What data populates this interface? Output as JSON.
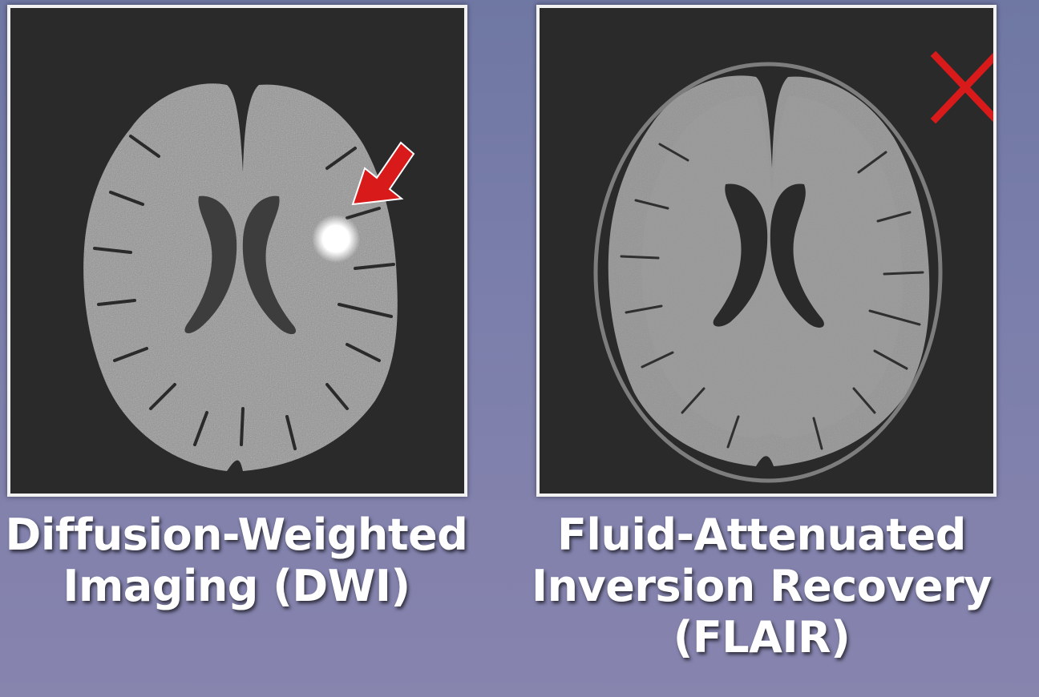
{
  "panels": [
    {
      "id": "dwi",
      "caption_lines": [
        "Diffusion-Weighted",
        "Imaging (DWI)"
      ],
      "marker": "arrow-icon",
      "marker_color": "#d81a1a",
      "lesion_color": "#ffffff"
    },
    {
      "id": "flair",
      "caption_lines": [
        "Fluid-Attenuated",
        "Inversion Recovery",
        "(FLAIR)"
      ],
      "marker": "cross-icon",
      "marker_color": "#d81a1a"
    }
  ],
  "colors": {
    "background_top": "#6f77a3",
    "background_bottom": "#8784ae",
    "panel_fill": "#2a2a2a",
    "brain_gray": "#8a8a8a",
    "ventricle": "#3a3a3a"
  }
}
